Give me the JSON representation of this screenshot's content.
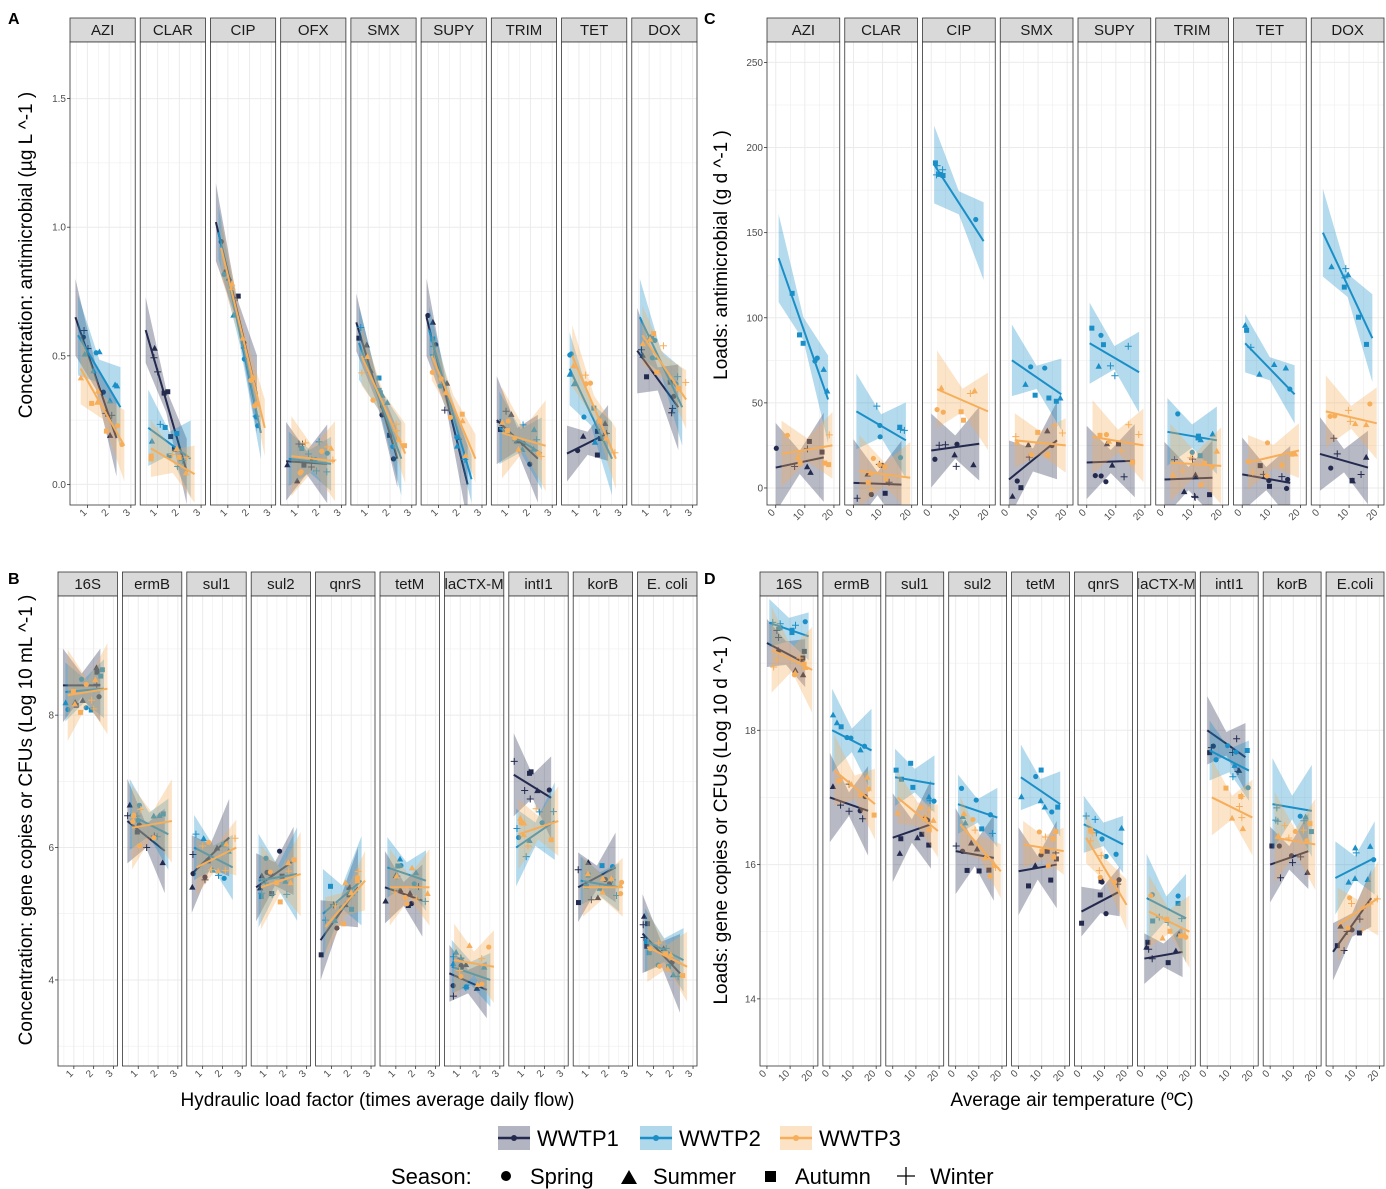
{
  "colors": {
    "WWTP1": "#232a4e",
    "WWTP2": "#1a8fc7",
    "WWTP3": "#f6ae5a",
    "strip_fill": "#d9d9d9",
    "grid": "#ebebeb"
  },
  "legend": {
    "plants": [
      "WWTP1",
      "WWTP2",
      "WWTP3"
    ],
    "season_title": "Season:",
    "seasons": [
      "Spring",
      "Summer",
      "Autumn",
      "Winter"
    ],
    "season_shapes": [
      "circle",
      "triangle",
      "square",
      "plus"
    ]
  },
  "chart_data": [
    {
      "panel": "A",
      "type": "scatter",
      "facets": [
        "AZI",
        "CLAR",
        "CIP",
        "OFX",
        "SMX",
        "SUPY",
        "TRIM",
        "TET",
        "DOX"
      ],
      "ylabel": "Concentration: antimicrobial (µg L ^-1 )",
      "xlim": [
        0.2,
        3.2
      ],
      "ylim": [
        -0.08,
        1.72
      ],
      "xticks": [
        1,
        2,
        3
      ],
      "yticks": [
        0.0,
        0.5,
        1.0,
        1.5
      ],
      "yticklabels": [
        "0.0",
        "0.5",
        "1.0",
        "1.5"
      ],
      "trend_start": {
        "WWTP1": [
          0.65,
          0.6,
          1.02,
          0.09,
          0.63,
          0.65,
          0.25,
          0.12,
          0.52
        ],
        "WWTP2": [
          0.58,
          0.22,
          0.98,
          0.1,
          0.55,
          0.6,
          0.22,
          0.45,
          0.65
        ],
        "WWTP3": [
          0.45,
          0.14,
          0.92,
          0.11,
          0.5,
          0.5,
          0.2,
          0.5,
          0.58
        ]
      },
      "trend_end": {
        "WWTP1": [
          0.18,
          0.05,
          0.35,
          0.08,
          0.1,
          0.0,
          0.1,
          0.2,
          0.3
        ],
        "WWTP2": [
          0.3,
          0.1,
          0.2,
          0.08,
          0.1,
          0.02,
          0.12,
          0.1,
          0.3
        ],
        "WWTP3": [
          0.15,
          0.04,
          0.22,
          0.09,
          0.12,
          0.1,
          0.15,
          0.1,
          0.33
        ]
      }
    },
    {
      "panel": "C",
      "type": "scatter",
      "facets": [
        "AZI",
        "CLAR",
        "CIP",
        "SMX",
        "SUPY",
        "TRIM",
        "TET",
        "DOX"
      ],
      "ylabel": "Loads: antimicrobial (g d ^-1 )",
      "xlabel": "",
      "xlim": [
        -3,
        22
      ],
      "ylim": [
        -10,
        262
      ],
      "xticks": [
        0,
        10,
        20
      ],
      "yticks": [
        0,
        50,
        100,
        150,
        200,
        250
      ],
      "yticklabels": [
        "0",
        "50",
        "100",
        "150",
        "200",
        "250"
      ],
      "trend_start": {
        "WWTP1": [
          12,
          3,
          22,
          5,
          15,
          5,
          8,
          20
        ],
        "WWTP2": [
          135,
          45,
          190,
          75,
          85,
          33,
          85,
          150
        ],
        "WWTP3": [
          20,
          10,
          58,
          28,
          30,
          15,
          15,
          45
        ]
      },
      "trend_end": {
        "WWTP1": [
          18,
          2,
          26,
          28,
          16,
          6,
          3,
          12
        ],
        "WWTP2": [
          52,
          28,
          145,
          55,
          68,
          28,
          55,
          88
        ],
        "WWTP3": [
          25,
          6,
          45,
          25,
          25,
          13,
          22,
          38
        ]
      }
    },
    {
      "panel": "B",
      "type": "scatter",
      "facets": [
        "16S",
        "ermB",
        "sul1",
        "sul2",
        "qnrS",
        "tetM",
        "blaCTX-M",
        "intI1",
        "korB",
        "E. coli"
      ],
      "facet_display": [
        "16S",
        "ermB",
        "sul1",
        "sul2",
        "qnrS",
        "tetM",
        "laCTX-M",
        "intI1",
        "korB",
        "E. coli"
      ],
      "ylabel": "Concentration: gene copies or CFUs (Log 10 mL ^-1 )",
      "xlabel": "Hydraulic load factor (times average daily flow)",
      "xlim": [
        0.2,
        3.2
      ],
      "ylim": [
        2.7,
        9.8
      ],
      "xticks": [
        1,
        2,
        3
      ],
      "yticks": [
        4,
        6,
        8
      ],
      "yticklabels": [
        "4",
        "6",
        "8"
      ],
      "trend_start": {
        "WWTP1": [
          8.45,
          6.4,
          5.6,
          5.4,
          4.6,
          5.4,
          4.1,
          7.1,
          5.4,
          4.7
        ],
        "WWTP2": [
          8.35,
          6.5,
          6.0,
          5.5,
          5.0,
          5.7,
          4.2,
          6.0,
          5.5,
          4.6
        ],
        "WWTP3": [
          8.3,
          6.3,
          5.7,
          5.4,
          4.8,
          5.4,
          4.3,
          6.2,
          5.4,
          4.5
        ]
      },
      "trend_end": {
        "WWTP1": [
          8.45,
          5.95,
          6.15,
          5.8,
          5.4,
          5.2,
          3.85,
          6.75,
          5.7,
          4.1
        ],
        "WWTP2": [
          8.4,
          6.2,
          5.7,
          5.6,
          5.5,
          5.5,
          4.0,
          6.4,
          5.4,
          4.3
        ],
        "WWTP3": [
          8.4,
          6.4,
          6.0,
          5.6,
          5.5,
          5.4,
          4.2,
          6.4,
          5.4,
          4.2
        ]
      }
    },
    {
      "panel": "D",
      "type": "scatter",
      "facets": [
        "16S",
        "ermB",
        "sul1",
        "sul2",
        "tetM",
        "qnrS",
        "blaCTX-M",
        "intI1",
        "korB",
        "E.coli"
      ],
      "facet_display": [
        "16S",
        "ermB",
        "sul1",
        "sul2",
        "tetM",
        "qnrS",
        "laCTX-M",
        "intI1",
        "korB",
        "E.coli"
      ],
      "ylabel": "Loads: gene copies or CFUs (Log 10 d ^-1 )",
      "xlabel": "Average air temperature (ºC)",
      "xlim": [
        -3,
        22
      ],
      "ylim": [
        13.0,
        20.0
      ],
      "xticks": [
        0,
        10,
        20
      ],
      "yticks": [
        14,
        16,
        18
      ],
      "yticklabels": [
        "14",
        "16",
        "18"
      ],
      "trend_start": {
        "WWTP1": [
          19.3,
          17.0,
          16.4,
          16.2,
          15.9,
          15.3,
          14.6,
          18.0,
          16.0,
          14.7
        ],
        "WWTP2": [
          19.6,
          18.0,
          17.3,
          16.9,
          17.3,
          16.6,
          15.5,
          17.7,
          16.9,
          15.8
        ],
        "WWTP3": [
          19.2,
          17.4,
          17.0,
          16.6,
          16.3,
          16.4,
          15.3,
          17.0,
          16.4,
          15.1
        ]
      },
      "trend_end": {
        "WWTP1": [
          19.0,
          16.8,
          16.6,
          16.1,
          16.0,
          15.6,
          14.7,
          17.6,
          16.2,
          15.5
        ],
        "WWTP2": [
          19.4,
          17.7,
          17.2,
          16.7,
          16.9,
          16.3,
          15.2,
          17.4,
          16.8,
          16.1
        ],
        "WWTP3": [
          18.9,
          16.9,
          16.5,
          15.9,
          16.2,
          15.4,
          15.0,
          16.7,
          16.3,
          15.5
        ]
      }
    }
  ]
}
